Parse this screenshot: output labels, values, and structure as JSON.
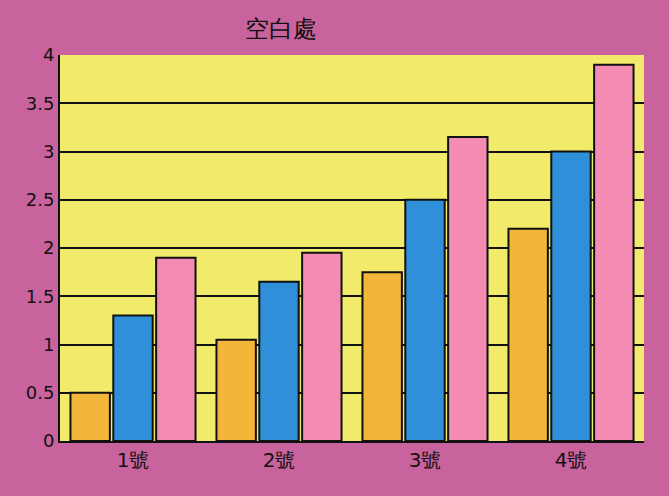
{
  "chart_data": {
    "type": "bar",
    "title": "空白處",
    "categories": [
      "1號",
      "2號",
      "3號",
      "4號"
    ],
    "series": [
      {
        "color": "#f3b53a",
        "values": [
          0.5,
          1.05,
          1.75,
          2.2
        ]
      },
      {
        "color": "#2f8fd8",
        "values": [
          1.3,
          1.65,
          2.5,
          3.0
        ]
      },
      {
        "color": "#f38bb2",
        "values": [
          1.9,
          1.95,
          3.15,
          3.9
        ]
      }
    ],
    "ylim": [
      0,
      4
    ],
    "yticks": [
      0,
      0.5,
      1,
      1.5,
      2,
      2.5,
      3,
      3.5,
      4
    ],
    "grid": true
  }
}
